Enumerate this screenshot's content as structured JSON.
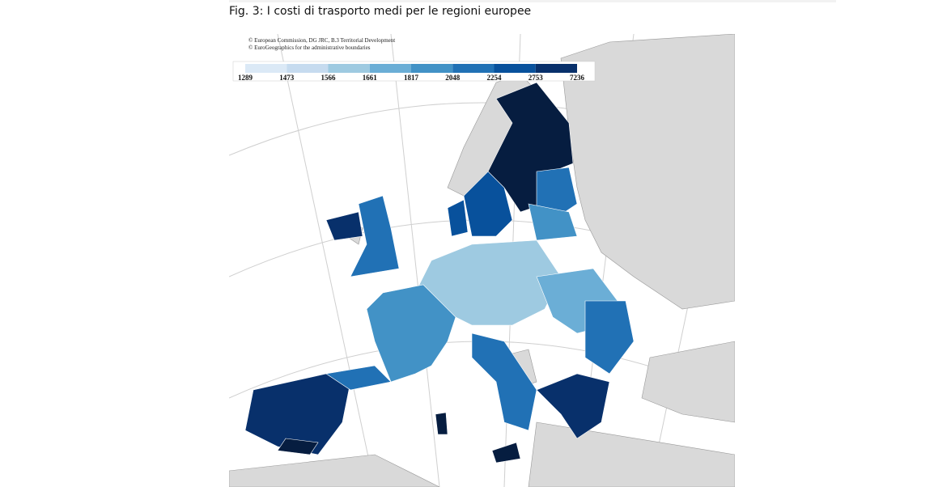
{
  "caption": "Fig. 3: I costi di trasporto medi per le regioni europee",
  "credits": [
    "© European Commission, DG JRC, B.3 Territorial Development",
    "© EuroGeographics for the administrative boundaries"
  ],
  "legend": {
    "labels": [
      "1289",
      "1473",
      "1566",
      "1661",
      "1817",
      "2048",
      "2254",
      "2753",
      "7236"
    ],
    "colors": [
      "#dbe9f6",
      "#c6dbef",
      "#9ecae1",
      "#6baed6",
      "#4292c6",
      "#2171b5",
      "#08519c",
      "#08306b"
    ]
  }
}
